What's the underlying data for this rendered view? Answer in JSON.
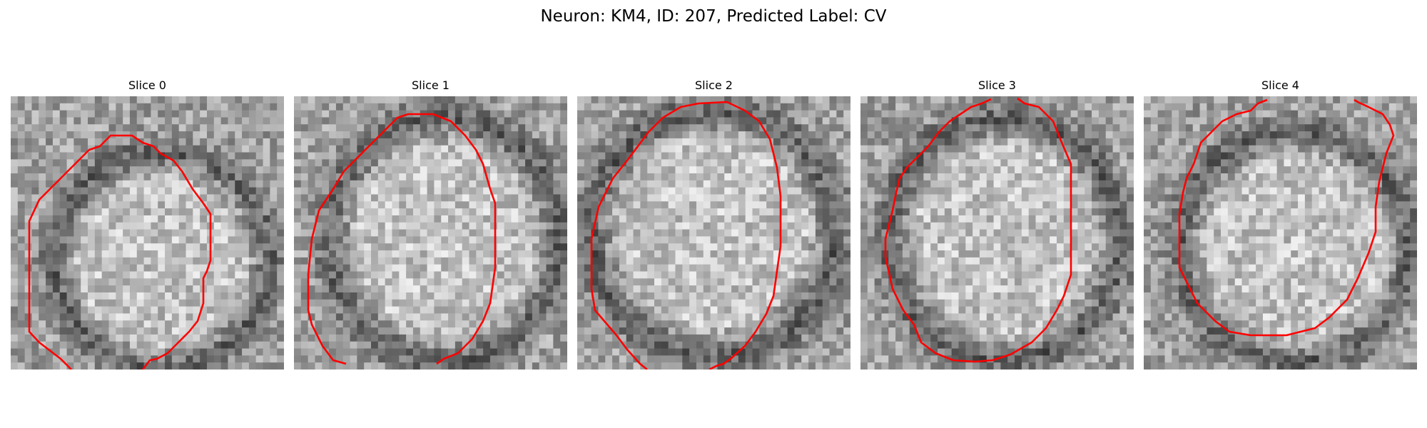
{
  "figure": {
    "title": "Neuron: KM4, ID: 207, Predicted Label: CV"
  },
  "panels": [
    {
      "title": "Slice 0"
    },
    {
      "title": "Slice 1"
    },
    {
      "title": "Slice 2"
    },
    {
      "title": "Slice 3"
    },
    {
      "title": "Slice 4"
    }
  ],
  "colors": {
    "contour": "#ff0000",
    "background": "#ffffff"
  }
}
